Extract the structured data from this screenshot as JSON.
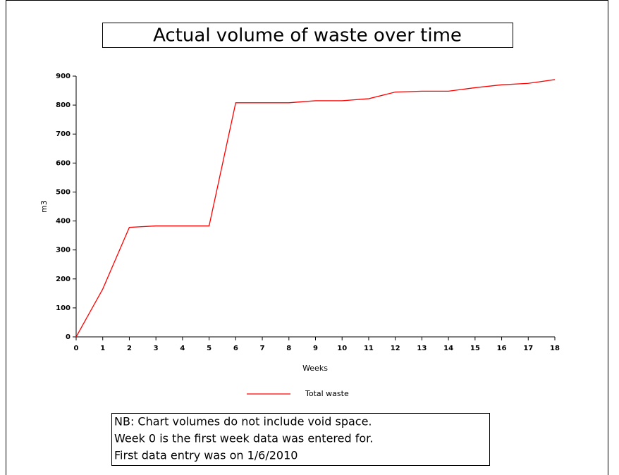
{
  "chart_data": {
    "type": "line",
    "title": "Actual volume of waste over time",
    "x_label": "Weeks",
    "y_label": "m3",
    "x": [
      0,
      1,
      2,
      3,
      4,
      5,
      6,
      7,
      8,
      9,
      10,
      11,
      12,
      13,
      14,
      15,
      16,
      17,
      18
    ],
    "series": [
      {
        "name": "Total waste",
        "color": "#ff0000",
        "values": [
          0,
          165,
          378,
          383,
          383,
          383,
          808,
          808,
          808,
          815,
          815,
          822,
          845,
          848,
          848,
          860,
          870,
          875,
          888
        ]
      }
    ],
    "xlim": [
      0,
      18
    ],
    "xticks": [
      0,
      1,
      2,
      3,
      4,
      5,
      6,
      7,
      8,
      9,
      10,
      11,
      12,
      13,
      14,
      15,
      16,
      17,
      18
    ],
    "ylim": [
      0,
      900
    ],
    "yticks": [
      0,
      100,
      200,
      300,
      400,
      500,
      600,
      700,
      800,
      900
    ],
    "grid": false,
    "legend": "bottom",
    "note": [
      "NB: Chart volumes do not include void space.",
      "Week 0 is the first week data was entered for.",
      "First data entry was on 1/6/2010"
    ]
  }
}
